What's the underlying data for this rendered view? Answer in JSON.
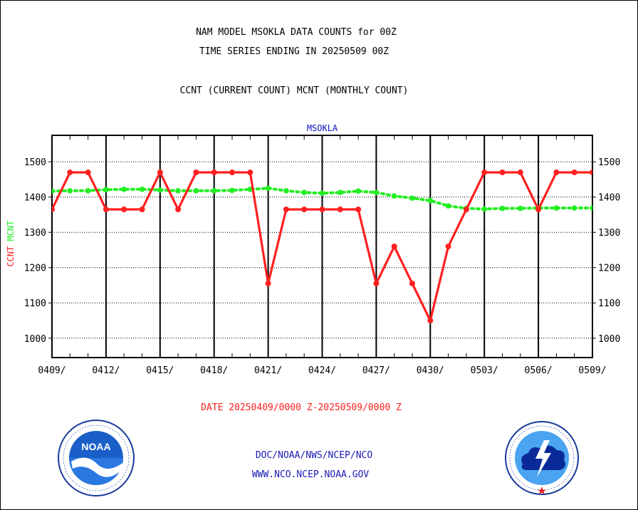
{
  "header": {
    "title_line1": "NAM MODEL MSOKLA DATA COUNTS for 00Z",
    "title_line2": "TIME SERIES ENDING IN 20250509 00Z",
    "subtitle": "CCNT (CURRENT COUNT) MCNT (MONTHLY COUNT)"
  },
  "footer": {
    "date_range": "DATE 20250409/0000 Z-20250509/0000 Z",
    "org_path": "DOC/NOAA/NWS/NCEP/NCO",
    "website": "WWW.NCO.NCEP.NOAA.GOV"
  },
  "logos": {
    "left": {
      "name": "noaa-logo",
      "text": "NOAA"
    },
    "right": {
      "name": "nws-logo"
    }
  },
  "colors": {
    "ccnt": "#ff2020",
    "mcnt": "#22ee22",
    "station_label": "#1010c0",
    "footer_text": "#1a1ab4",
    "date_text": "#ff2020"
  },
  "chart_data": {
    "type": "line",
    "title": "MSOKLA",
    "ylabel_series": [
      "CCNT",
      "MCNT"
    ],
    "x_tick_labels": [
      "0409/",
      "0412/",
      "0415/",
      "0418/",
      "0421/",
      "0424/",
      "0427/",
      "0430/",
      "0503/",
      "0506/",
      "0509/"
    ],
    "x": [
      "0409",
      "0410",
      "0411",
      "0412",
      "0413",
      "0414",
      "0415",
      "0416",
      "0417",
      "0418",
      "0419",
      "0420",
      "0421",
      "0422",
      "0423",
      "0424",
      "0425",
      "0426",
      "0427",
      "0428",
      "0429",
      "0430",
      "0501",
      "0502",
      "0503",
      "0504",
      "0505",
      "0506",
      "0507",
      "0508",
      "0509"
    ],
    "ylim": [
      945,
      1575
    ],
    "y_ticks": [
      1000,
      1100,
      1200,
      1300,
      1400,
      1500
    ],
    "grid": true,
    "series": [
      {
        "name": "CCNT",
        "style": "solid",
        "values": [
          1365,
          1470,
          1470,
          1365,
          1365,
          1365,
          1470,
          1365,
          1470,
          1470,
          1470,
          1470,
          1155,
          1365,
          1365,
          1365,
          1365,
          1365,
          1155,
          1260,
          1155,
          1050,
          1260,
          1365,
          1470,
          1470,
          1470,
          1365,
          1470,
          1470,
          1470
        ]
      },
      {
        "name": "MCNT",
        "style": "dotted",
        "values": [
          1417,
          1418,
          1418,
          1421,
          1422,
          1422,
          1420,
          1418,
          1418,
          1418,
          1419,
          1422,
          1425,
          1418,
          1413,
          1411,
          1413,
          1417,
          1413,
          1403,
          1397,
          1390,
          1375,
          1368,
          1366,
          1368,
          1368,
          1369,
          1369,
          1369,
          1369
        ]
      }
    ]
  }
}
